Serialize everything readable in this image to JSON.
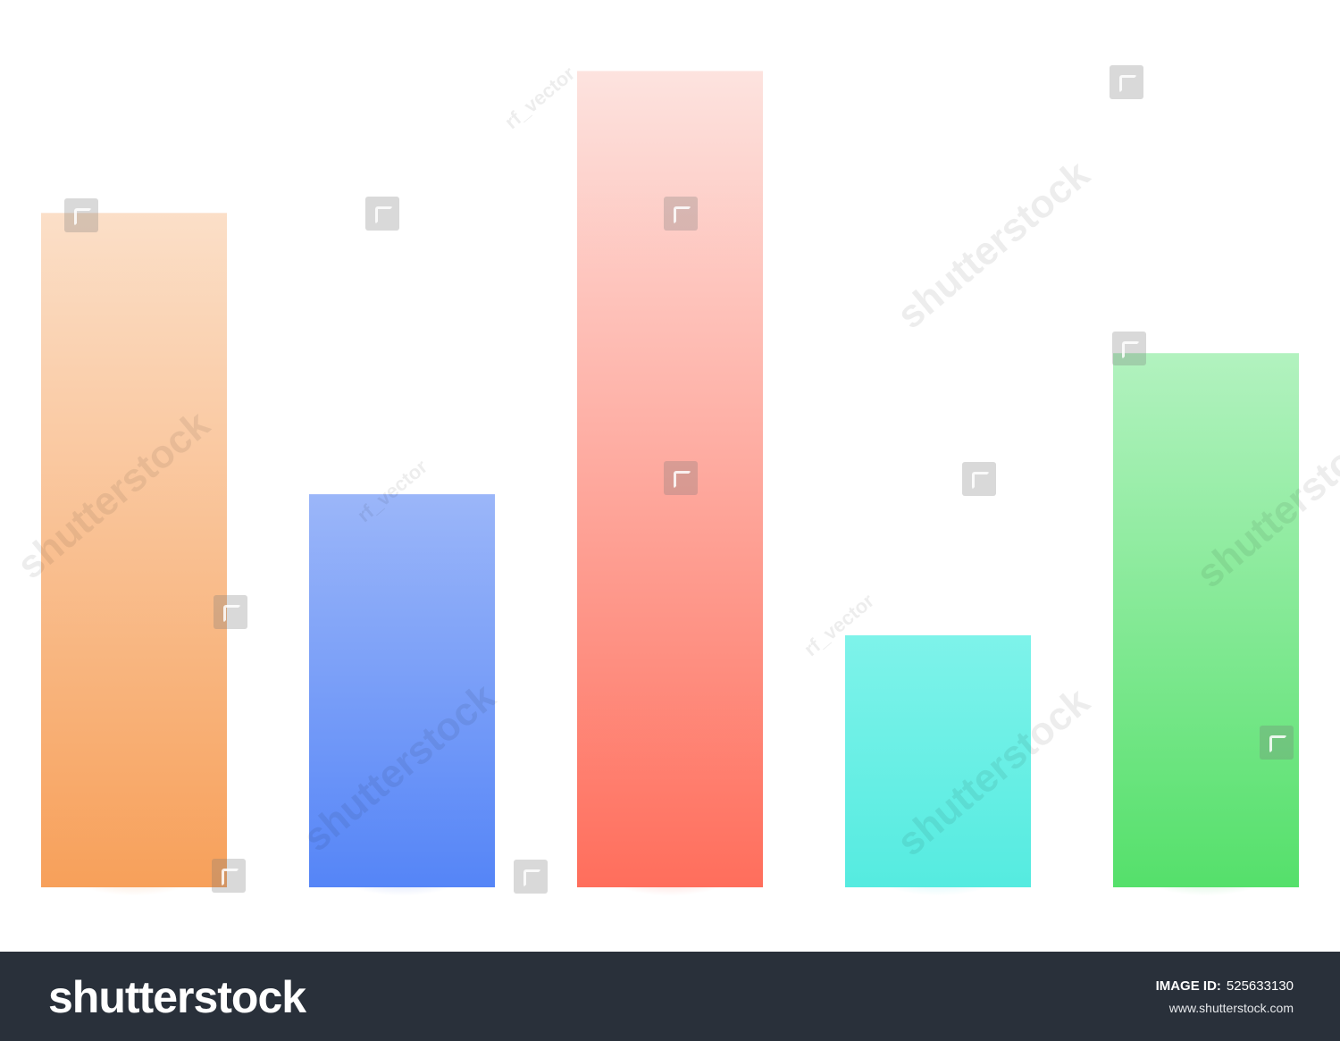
{
  "chart_data": {
    "type": "bar",
    "values": [
      76,
      44.3,
      92,
      28.4,
      60.2
    ],
    "colors": [
      {
        "top": "#fbdfc8",
        "bottom": "#f7a05a",
        "glow": "#f47a1f"
      },
      {
        "top": "#9bb6f9",
        "bottom": "#5585f7",
        "glow": "#2f5ff0"
      },
      {
        "top": "#fde3df",
        "bottom": "#ff6e5c",
        "glow": "#ff3b26"
      },
      {
        "top": "#7ef3ea",
        "bottom": "#55ebe0",
        "glow": "#22d9e6"
      },
      {
        "top": "#b2f2bf",
        "bottom": "#55e06b",
        "glow": "#22c53a"
      }
    ],
    "ylim": [
      0,
      100
    ],
    "grid": false,
    "legend": "none"
  },
  "watermark": {
    "brand": "shutterstock",
    "contributor": "rf_vector"
  },
  "footer": {
    "logo_text": "shutterstock",
    "image_id_label": "IMAGE ID:",
    "image_id": "525633130",
    "url": "www.shutterstock.com"
  }
}
